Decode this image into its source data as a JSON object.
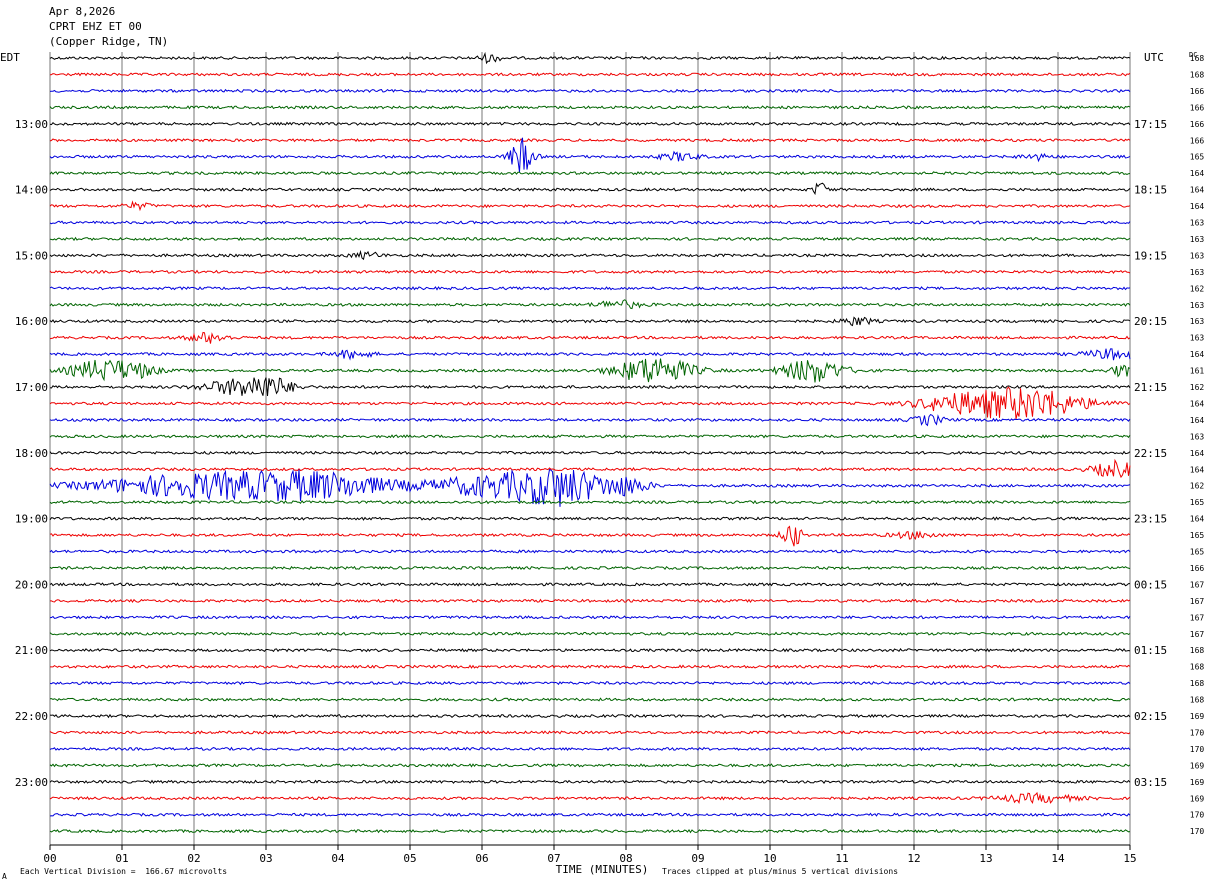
{
  "header": {
    "date": "Apr 8,2026",
    "station": "CPRT EHZ ET 00",
    "location": "(Copper Ridge, TN)"
  },
  "footer": {
    "left_mark": "A",
    "scale_note": "Each Vertical Division =  166.67 microvolts",
    "clip_note": "Traces clipped at plus/minus 5 vertical divisions"
  },
  "chart_data": {
    "type": "line",
    "title": "",
    "xlabel": "TIME (MINUTES)",
    "left_axis_label": "EDT",
    "right_axis_label": "UTC",
    "dc_label": "DC",
    "xlim": [
      0,
      15
    ],
    "x_ticks": [
      "00",
      "01",
      "02",
      "03",
      "04",
      "05",
      "06",
      "07",
      "08",
      "09",
      "10",
      "11",
      "12",
      "13",
      "14",
      "15"
    ],
    "left_time_labels": [
      "13:00",
      "14:00",
      "15:00",
      "16:00",
      "17:00",
      "18:00",
      "19:00",
      "20:00",
      "21:00",
      "22:00",
      "23:00"
    ],
    "right_time_labels": [
      "17:15",
      "18:15",
      "19:15",
      "20:15",
      "21:15",
      "22:15",
      "23:15",
      "00:15",
      "01:15",
      "02:15",
      "03:15"
    ],
    "label_first_row": 4,
    "label_row_step": 4,
    "trace_colors": [
      "#000000",
      "#ee0000",
      "#0000dd",
      "#006400"
    ],
    "grid": true,
    "dc_offsets": [
      168,
      168,
      166,
      166,
      166,
      166,
      165,
      164,
      164,
      164,
      163,
      163,
      163,
      163,
      162,
      163,
      163,
      163,
      164,
      161,
      162,
      164,
      164,
      163,
      164,
      164,
      162,
      165,
      164,
      165,
      165,
      166,
      167,
      167,
      167,
      167,
      168,
      168,
      168,
      168,
      169,
      170,
      170,
      169,
      169,
      169,
      170,
      170
    ],
    "events": [
      {
        "row": 0,
        "minute": 6.1,
        "amp": 4,
        "width": 0.15
      },
      {
        "row": 6,
        "minute": 6.55,
        "amp": 18,
        "width": 0.15
      },
      {
        "row": 6,
        "minute": 8.75,
        "amp": 4,
        "width": 0.25
      },
      {
        "row": 6,
        "minute": 13.7,
        "amp": 3,
        "width": 0.2
      },
      {
        "row": 8,
        "minute": 10.7,
        "amp": 7,
        "width": 0.1
      },
      {
        "row": 9,
        "minute": 1.2,
        "amp": 3,
        "width": 0.2
      },
      {
        "row": 12,
        "minute": 4.4,
        "amp": 3,
        "width": 0.2
      },
      {
        "row": 15,
        "minute": 7.9,
        "amp": 4,
        "width": 0.3
      },
      {
        "row": 16,
        "minute": 11.2,
        "amp": 4,
        "width": 0.2
      },
      {
        "row": 17,
        "minute": 2.2,
        "amp": 5,
        "width": 0.25
      },
      {
        "row": 18,
        "minute": 4.2,
        "amp": 4,
        "width": 0.25
      },
      {
        "row": 18,
        "minute": 14.8,
        "amp": 5,
        "width": 0.4
      },
      {
        "row": 19,
        "minute": 0.7,
        "amp": 10,
        "width": 0.4
      },
      {
        "row": 19,
        "minute": 1.2,
        "amp": 6,
        "width": 0.3
      },
      {
        "row": 19,
        "minute": 8.4,
        "amp": 14,
        "width": 0.5
      },
      {
        "row": 19,
        "minute": 10.6,
        "amp": 12,
        "width": 0.4
      },
      {
        "row": 19,
        "minute": 14.9,
        "amp": 6,
        "width": 0.15
      },
      {
        "row": 20,
        "minute": 2.5,
        "amp": 6,
        "width": 0.4
      },
      {
        "row": 20,
        "minute": 3.0,
        "amp": 11,
        "width": 0.35
      },
      {
        "row": 21,
        "minute": 12.5,
        "amp": 6,
        "width": 0.5
      },
      {
        "row": 21,
        "minute": 13.5,
        "amp": 16,
        "width": 0.8
      },
      {
        "row": 22,
        "minute": 12.2,
        "amp": 5,
        "width": 0.2
      },
      {
        "row": 26,
        "minute": 2.2,
        "amp": 12,
        "width": 1.5
      },
      {
        "row": 26,
        "minute": 3.8,
        "amp": 10,
        "width": 1.0
      },
      {
        "row": 26,
        "minute": 6.1,
        "amp": 10,
        "width": 0.8
      },
      {
        "row": 26,
        "minute": 7.1,
        "amp": 18,
        "width": 0.6
      },
      {
        "row": 26,
        "minute": 8.0,
        "amp": 8,
        "width": 0.3
      },
      {
        "row": 25,
        "minute": 14.8,
        "amp": 8,
        "width": 0.3
      },
      {
        "row": 29,
        "minute": 10.3,
        "amp": 14,
        "width": 0.12
      },
      {
        "row": 29,
        "minute": 12.0,
        "amp": 3,
        "width": 0.3
      },
      {
        "row": 45,
        "minute": 13.7,
        "amp": 4,
        "width": 0.5
      }
    ]
  }
}
